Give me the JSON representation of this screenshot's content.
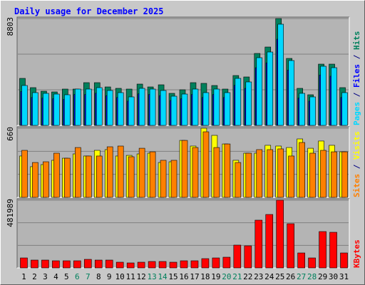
{
  "chart_data": [
    {
      "type": "bar",
      "title": "Daily usage for December 2025",
      "ylim": [
        0,
        8803
      ],
      "yticks": [
        8803
      ],
      "series": [
        {
          "name": "Hits",
          "color": "#00805c",
          "values": [
            3873,
            3111,
            2817,
            2758,
            2993,
            2993,
            3521,
            3521,
            3169,
            3052,
            2993,
            3404,
            3169,
            3345,
            2641,
            2934,
            3521,
            3463,
            3286,
            2993,
            4108,
            3991,
            5927,
            6456,
            8803,
            5517,
            3052,
            2524,
            5047,
            5047,
            3111
          ]
        },
        {
          "name": "Files",
          "color": "#0000ff",
          "values": [
            2800,
            2300,
            2250,
            2200,
            2150,
            2550,
            2550,
            2650,
            2450,
            2300,
            2000,
            2600,
            2550,
            2450,
            2050,
            2200,
            2550,
            2300,
            2550,
            2300,
            3300,
            3050,
            4750,
            5150,
            7100,
            4550,
            2250,
            2000,
            4150,
            4050,
            2300
          ]
        },
        {
          "name": "Pages",
          "color": "#00d8ff",
          "values": [
            3287,
            2700,
            2641,
            2582,
            2524,
            2993,
            2993,
            3111,
            2876,
            2700,
            2348,
            3052,
            2993,
            2876,
            2406,
            2582,
            2993,
            2700,
            2993,
            2700,
            3873,
            3580,
            5576,
            6045,
            8334,
            5341,
            2641,
            2348,
            4871,
            4754,
            2700
          ]
        }
      ]
    },
    {
      "type": "bar",
      "ylim": [
        0,
        660
      ],
      "yticks": [
        660
      ],
      "series": [
        {
          "name": "Visits",
          "color": "#ffff00",
          "values": [
            395,
            293,
            313,
            354,
            374,
            415,
            395,
            449,
            456,
            395,
            401,
            415,
            422,
            333,
            340,
            544,
            490,
            660,
            592,
            510,
            354,
            422,
            422,
            497,
            490,
            476,
            558,
            469,
            538,
            497,
            435
          ]
        },
        {
          "name": "Sites",
          "color": "#ff8000",
          "values": [
            449,
            333,
            340,
            422,
            374,
            476,
            395,
            395,
            483,
            490,
            388,
            469,
            435,
            354,
            354,
            544,
            476,
            626,
            476,
            510,
            333,
            422,
            456,
            456,
            463,
            395,
            524,
            422,
            449,
            435,
            435
          ]
        }
      ]
    },
    {
      "type": "bar",
      "ylim": [
        0,
        481989
      ],
      "yticks": [
        481989
      ],
      "categories": [
        "1",
        "2",
        "3",
        "4",
        "5",
        "6",
        "7",
        "8",
        "9",
        "10",
        "11",
        "12",
        "13",
        "14",
        "15",
        "16",
        "17",
        "18",
        "19",
        "20",
        "21",
        "22",
        "23",
        "24",
        "25",
        "26",
        "27",
        "28",
        "29",
        "30",
        "31"
      ],
      "weekends": [
        5,
        6,
        12,
        13,
        19,
        20,
        26,
        27
      ],
      "weekday_color": "#000000",
      "weekend_color": "#00805c",
      "series": [
        {
          "name": "KBytes",
          "color": "#ff0000",
          "values": [
            71030,
            55807,
            55807,
            50736,
            50736,
            50736,
            60883,
            55807,
            55807,
            40589,
            35515,
            40589,
            45662,
            45662,
            40589,
            50736,
            50736,
            65957,
            71030,
            76104,
            162355,
            157281,
            339931,
            380520,
            481989,
            314563,
            106546,
            71030,
            258754,
            253680,
            106546
          ]
        }
      ]
    }
  ]
}
